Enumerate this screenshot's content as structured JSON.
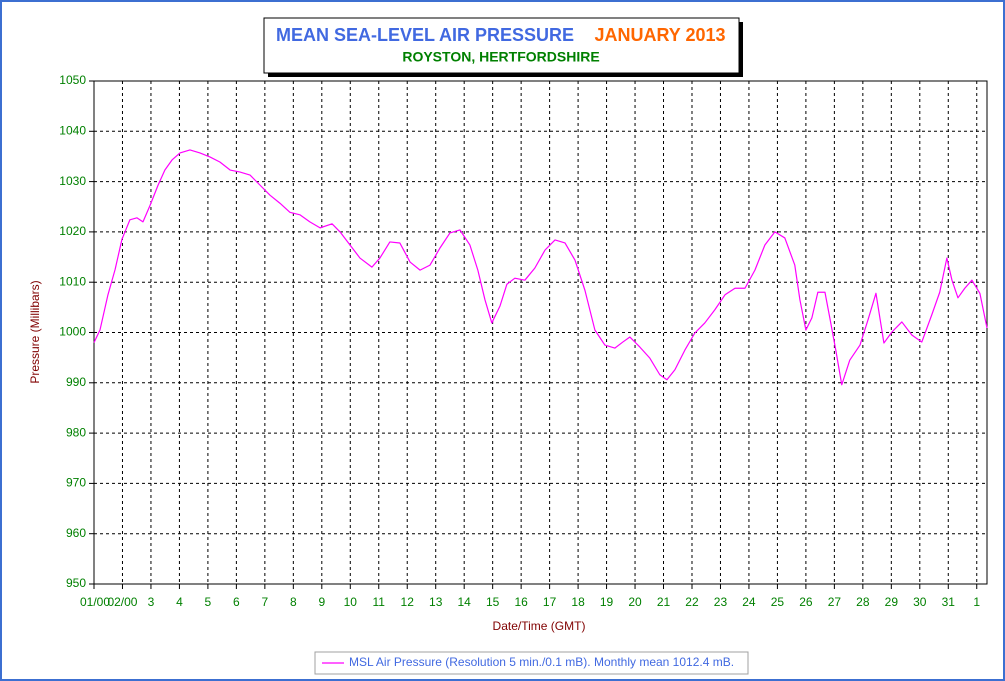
{
  "chart_data": {
    "type": "line",
    "title": "MEAN SEA-LEVEL AIR PRESSURE",
    "title_period": "JANUARY 2013",
    "subtitle": "ROYSTON, HERTFORDSHIRE",
    "x_label": "Date/Time (GMT)",
    "y_label": "Pressure (Millibars)",
    "grid": true,
    "legend": "bottom",
    "xlim": [
      0,
      31.36
    ],
    "ylim": [
      950,
      1050
    ],
    "yticks": [
      950,
      960,
      970,
      980,
      990,
      1000,
      1010,
      1020,
      1030,
      1040,
      1050
    ],
    "xticks": [
      {
        "value": 0,
        "label": "01/00"
      },
      {
        "value": 1,
        "label": "02/00"
      },
      {
        "value": 2,
        "label": "3"
      },
      {
        "value": 3,
        "label": "4"
      },
      {
        "value": 4,
        "label": "5"
      },
      {
        "value": 5,
        "label": "6"
      },
      {
        "value": 6,
        "label": "7"
      },
      {
        "value": 7,
        "label": "8"
      },
      {
        "value": 8,
        "label": "9"
      },
      {
        "value": 9,
        "label": "10"
      },
      {
        "value": 10,
        "label": "11"
      },
      {
        "value": 11,
        "label": "12"
      },
      {
        "value": 12,
        "label": "13"
      },
      {
        "value": 13,
        "label": "14"
      },
      {
        "value": 14,
        "label": "15"
      },
      {
        "value": 15,
        "label": "16"
      },
      {
        "value": 16,
        "label": "17"
      },
      {
        "value": 17,
        "label": "18"
      },
      {
        "value": 18,
        "label": "19"
      },
      {
        "value": 19,
        "label": "20"
      },
      {
        "value": 20,
        "label": "21"
      },
      {
        "value": 21,
        "label": "22"
      },
      {
        "value": 22,
        "label": "23"
      },
      {
        "value": 23,
        "label": "24"
      },
      {
        "value": 24,
        "label": "25"
      },
      {
        "value": 25,
        "label": "26"
      },
      {
        "value": 26,
        "label": "27"
      },
      {
        "value": 27,
        "label": "28"
      },
      {
        "value": 28,
        "label": "29"
      },
      {
        "value": 29,
        "label": "30"
      },
      {
        "value": 30,
        "label": "31"
      },
      {
        "value": 31,
        "label": "1"
      }
    ],
    "x": [
      0,
      0.21,
      0.49,
      0.74,
      0.98,
      1.26,
      1.51,
      1.72,
      1.97,
      2.25,
      2.49,
      2.74,
      3.02,
      3.37,
      3.72,
      4.07,
      4.42,
      4.78,
      5.13,
      5.48,
      5.83,
      6.18,
      6.53,
      6.88,
      7.23,
      7.58,
      7.94,
      8.36,
      8.64,
      8.99,
      9.34,
      9.76,
      10.04,
      10.39,
      10.74,
      11.1,
      11.45,
      11.8,
      12.15,
      12.5,
      12.85,
      13.2,
      13.48,
      13.73,
      13.97,
      14.26,
      14.5,
      14.78,
      15.13,
      15.48,
      15.84,
      16.19,
      16.54,
      16.89,
      17.24,
      17.59,
      17.94,
      18.29,
      18.57,
      18.82,
      19.17,
      19.52,
      19.87,
      20.12,
      20.4,
      20.75,
      21.1,
      21.45,
      21.8,
      22.16,
      22.51,
      22.86,
      23.21,
      23.56,
      23.91,
      24.26,
      24.61,
      24.79,
      25.0,
      25.21,
      25.42,
      25.67,
      25.84,
      26.05,
      26.26,
      26.54,
      26.9,
      27.18,
      27.46,
      27.74,
      28.02,
      28.37,
      28.72,
      29.07,
      29.42,
      29.7,
      29.95,
      30.13,
      30.34,
      30.58,
      30.83,
      31.11,
      31.36
    ],
    "series": [
      {
        "name": "MSL Air Pressure (Resolution 5 min./0.1 mB). Monthly mean 1012.4 mB.",
        "color": "#ff00ff",
        "values": [
          998,
          1000.5,
          1007.5,
          1012.5,
          1018.5,
          1022.4,
          1022.8,
          1022,
          1025.3,
          1029.3,
          1032.3,
          1034.3,
          1035.7,
          1036.3,
          1035.7,
          1034.9,
          1033.9,
          1032.3,
          1031.9,
          1031.3,
          1029.3,
          1027.3,
          1025.7,
          1023.9,
          1023.4,
          1022,
          1020.8,
          1021.6,
          1020,
          1017.4,
          1014.8,
          1013,
          1014.8,
          1018,
          1017.8,
          1014,
          1012.4,
          1013.4,
          1016.8,
          1019.8,
          1020.4,
          1017.4,
          1012.4,
          1006.5,
          1001.9,
          1005.3,
          1009.6,
          1010.8,
          1010.4,
          1012.8,
          1016.4,
          1018.4,
          1017.8,
          1014.4,
          1008.4,
          1000.5,
          997.5,
          996.9,
          998.1,
          999.1,
          997.1,
          994.9,
          991.6,
          990.6,
          992.6,
          996.5,
          999.9,
          1001.9,
          1004.5,
          1007.5,
          1008.8,
          1008.8,
          1012.4,
          1017.4,
          1020,
          1018.8,
          1013.4,
          1006.5,
          1000.5,
          1002.9,
          1008,
          1008,
          1002.9,
          996.5,
          989.6,
          994.5,
          997.5,
          1002.5,
          1007.8,
          997.9,
          1000.1,
          1002.1,
          999.5,
          998.1,
          1003.5,
          1008,
          1014.8,
          1010.4,
          1006.9,
          1008.8,
          1010.4,
          1007.8,
          1000.9
        ]
      }
    ]
  }
}
